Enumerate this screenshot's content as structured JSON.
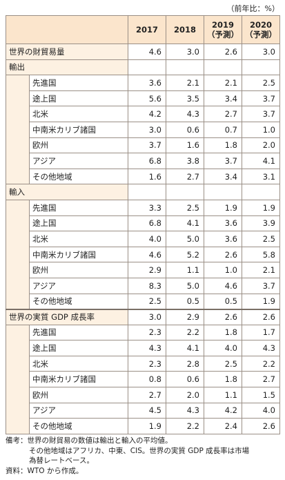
{
  "header": {
    "unit": "（前年比：%）"
  },
  "table": {
    "columns": [
      {
        "year": "2017"
      },
      {
        "year": "2018"
      },
      {
        "year": "2019",
        "note": "（予測）"
      },
      {
        "year": "2020",
        "note": "（予測）"
      }
    ],
    "rows": [
      {
        "label": "世界の財貿易量",
        "level": 0,
        "values": [
          "4.6",
          "3.0",
          "2.6",
          "3.0"
        ]
      },
      {
        "label": "輸出",
        "level": 0
      },
      {
        "label": "先進国",
        "level": 1,
        "values": [
          "3.6",
          "2.1",
          "2.1",
          "2.5"
        ]
      },
      {
        "label": "途上国",
        "level": 1,
        "values": [
          "5.6",
          "3.5",
          "3.4",
          "3.7"
        ]
      },
      {
        "label": "北米",
        "level": 1,
        "values": [
          "4.2",
          "4.3",
          "2.7",
          "3.7"
        ]
      },
      {
        "label": "中南米カリブ諸国",
        "level": 1,
        "values": [
          "3.0",
          "0.6",
          "0.7",
          "1.0"
        ]
      },
      {
        "label": "欧州",
        "level": 1,
        "values": [
          "3.7",
          "1.6",
          "1.8",
          "2.0"
        ]
      },
      {
        "label": "アジア",
        "level": 1,
        "values": [
          "6.8",
          "3.8",
          "3.7",
          "4.1"
        ]
      },
      {
        "label": "その他地域",
        "level": 1,
        "values": [
          "1.6",
          "2.7",
          "3.4",
          "3.1"
        ]
      },
      {
        "label": "輸入",
        "level": 0
      },
      {
        "label": "先進国",
        "level": 1,
        "values": [
          "3.3",
          "2.5",
          "1.9",
          "1.9"
        ]
      },
      {
        "label": "途上国",
        "level": 1,
        "values": [
          "6.8",
          "4.1",
          "3.6",
          "3.9"
        ]
      },
      {
        "label": "北米",
        "level": 1,
        "values": [
          "4.0",
          "5.0",
          "3.6",
          "2.5"
        ]
      },
      {
        "label": "中南米カリブ諸国",
        "level": 1,
        "values": [
          "4.6",
          "5.2",
          "2.6",
          "5.8"
        ]
      },
      {
        "label": "欧州",
        "level": 1,
        "values": [
          "2.9",
          "1.1",
          "1.0",
          "2.1"
        ]
      },
      {
        "label": "アジア",
        "level": 1,
        "values": [
          "8.3",
          "5.0",
          "4.6",
          "3.7"
        ]
      },
      {
        "label": "その他地域",
        "level": 1,
        "values": [
          "2.5",
          "0.5",
          "0.5",
          "1.9"
        ]
      },
      {
        "label": "世界の実質 GDP 成長率",
        "level": 0,
        "values": [
          "3.0",
          "2.9",
          "2.6",
          "2.6"
        ]
      },
      {
        "label": "先進国",
        "level": 1,
        "values": [
          "2.3",
          "2.2",
          "1.8",
          "1.7"
        ]
      },
      {
        "label": "途上国",
        "level": 1,
        "values": [
          "4.3",
          "4.1",
          "4.0",
          "4.3"
        ]
      },
      {
        "label": "北米",
        "level": 1,
        "values": [
          "2.3",
          "2.8",
          "2.5",
          "2.2"
        ]
      },
      {
        "label": "中南米カリブ諸国",
        "level": 1,
        "values": [
          "0.8",
          "0.6",
          "1.8",
          "2.7"
        ]
      },
      {
        "label": "欧州",
        "level": 1,
        "values": [
          "2.7",
          "2.0",
          "1.1",
          "1.5"
        ]
      },
      {
        "label": "アジア",
        "level": 1,
        "values": [
          "4.5",
          "4.3",
          "4.2",
          "4.0"
        ]
      },
      {
        "label": "その他地域",
        "level": 1,
        "values": [
          "1.9",
          "2.2",
          "2.4",
          "2.6"
        ]
      }
    ]
  },
  "notes": {
    "lines": [
      "備考：世界の財貿易の数値は輸出と輸入の平均値。",
      "その他地域はアフリカ、中東、CIS。世界の実質 GDP 成長率は市場",
      "為替レートベース。"
    ],
    "source": "資料：WTO から作成。"
  }
}
